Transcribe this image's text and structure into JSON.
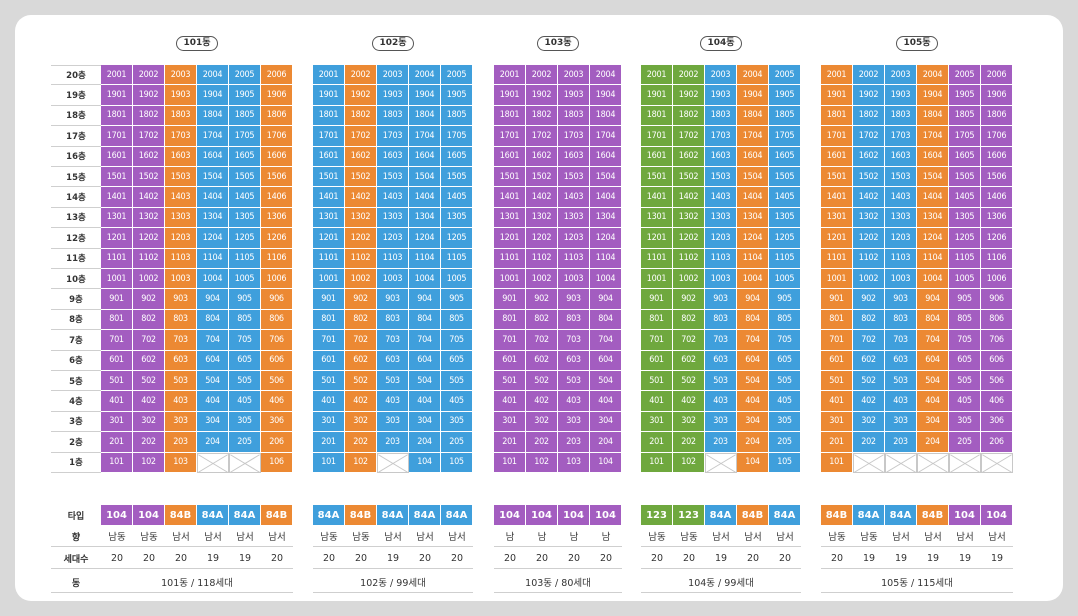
{
  "colors": {
    "purple": "#a35dc0",
    "orange": "#ec8933",
    "blue": "#3f9fdc",
    "green": "#6fa83e"
  },
  "floors": [
    "20층",
    "19층",
    "18층",
    "17층",
    "16층",
    "15층",
    "14층",
    "13층",
    "12층",
    "11층",
    "10층",
    "9층",
    "8층",
    "7층",
    "6층",
    "5층",
    "4층",
    "3층",
    "2층",
    "1층"
  ],
  "row_labels": {
    "type": "타입",
    "direction": "향",
    "households": "세대수",
    "building": "동"
  },
  "buildings": [
    {
      "label": "101동",
      "summary": "101동 / 118세대",
      "lines": [
        {
          "unit": "01",
          "color": "purple",
          "type": "104",
          "direction": "남동",
          "households": "20",
          "missing": []
        },
        {
          "unit": "02",
          "color": "purple",
          "type": "104",
          "direction": "남동",
          "households": "20",
          "missing": []
        },
        {
          "unit": "03",
          "color": "orange",
          "type": "84B",
          "direction": "남서",
          "households": "20",
          "missing": []
        },
        {
          "unit": "04",
          "color": "blue",
          "type": "84A",
          "direction": "남서",
          "households": "19",
          "missing": [
            1
          ]
        },
        {
          "unit": "05",
          "color": "blue",
          "type": "84A",
          "direction": "남서",
          "households": "19",
          "missing": [
            1
          ]
        },
        {
          "unit": "06",
          "color": "orange",
          "type": "84B",
          "direction": "남서",
          "households": "20",
          "missing": []
        }
      ]
    },
    {
      "label": "102동",
      "summary": "102동 / 99세대",
      "lines": [
        {
          "unit": "01",
          "color": "blue",
          "type": "84A",
          "direction": "남동",
          "households": "20",
          "missing": []
        },
        {
          "unit": "02",
          "color": "orange",
          "type": "84B",
          "direction": "남동",
          "households": "20",
          "missing": []
        },
        {
          "unit": "03",
          "color": "blue",
          "type": "84A",
          "direction": "남서",
          "households": "19",
          "missing": [
            1
          ]
        },
        {
          "unit": "04",
          "color": "blue",
          "type": "84A",
          "direction": "남서",
          "households": "20",
          "missing": []
        },
        {
          "unit": "05",
          "color": "blue",
          "type": "84A",
          "direction": "남서",
          "households": "20",
          "missing": []
        }
      ]
    },
    {
      "label": "103동",
      "summary": "103동 / 80세대",
      "lines": [
        {
          "unit": "01",
          "color": "purple",
          "type": "104",
          "direction": "남",
          "households": "20",
          "missing": []
        },
        {
          "unit": "02",
          "color": "purple",
          "type": "104",
          "direction": "남",
          "households": "20",
          "missing": []
        },
        {
          "unit": "03",
          "color": "purple",
          "type": "104",
          "direction": "남",
          "households": "20",
          "missing": []
        },
        {
          "unit": "04",
          "color": "purple",
          "type": "104",
          "direction": "남",
          "households": "20",
          "missing": []
        }
      ]
    },
    {
      "label": "104동",
      "summary": "104동 / 99세대",
      "lines": [
        {
          "unit": "01",
          "color": "green",
          "type": "123",
          "direction": "남동",
          "households": "20",
          "missing": []
        },
        {
          "unit": "02",
          "color": "green",
          "type": "123",
          "direction": "남동",
          "households": "20",
          "missing": []
        },
        {
          "unit": "03",
          "color": "blue",
          "type": "84A",
          "direction": "남서",
          "households": "19",
          "missing": [
            1
          ]
        },
        {
          "unit": "04",
          "color": "orange",
          "type": "84B",
          "direction": "남서",
          "households": "20",
          "missing": []
        },
        {
          "unit": "05",
          "color": "blue",
          "type": "84A",
          "direction": "남서",
          "households": "20",
          "missing": []
        }
      ]
    },
    {
      "label": "105동",
      "summary": "105동 / 115세대",
      "lines": [
        {
          "unit": "01",
          "color": "orange",
          "type": "84B",
          "direction": "남동",
          "households": "20",
          "missing": []
        },
        {
          "unit": "02",
          "color": "blue",
          "type": "84A",
          "direction": "남동",
          "households": "19",
          "missing": [
            1
          ]
        },
        {
          "unit": "03",
          "color": "blue",
          "type": "84A",
          "direction": "남서",
          "households": "19",
          "missing": [
            1
          ]
        },
        {
          "unit": "04",
          "color": "orange",
          "type": "84B",
          "direction": "남서",
          "households": "19",
          "missing": [
            1
          ]
        },
        {
          "unit": "05",
          "color": "purple",
          "type": "104",
          "direction": "남서",
          "households": "19",
          "missing": [
            1
          ]
        },
        {
          "unit": "06",
          "color": "purple",
          "type": "104",
          "direction": "남서",
          "households": "19",
          "missing": [
            1
          ]
        }
      ]
    }
  ]
}
